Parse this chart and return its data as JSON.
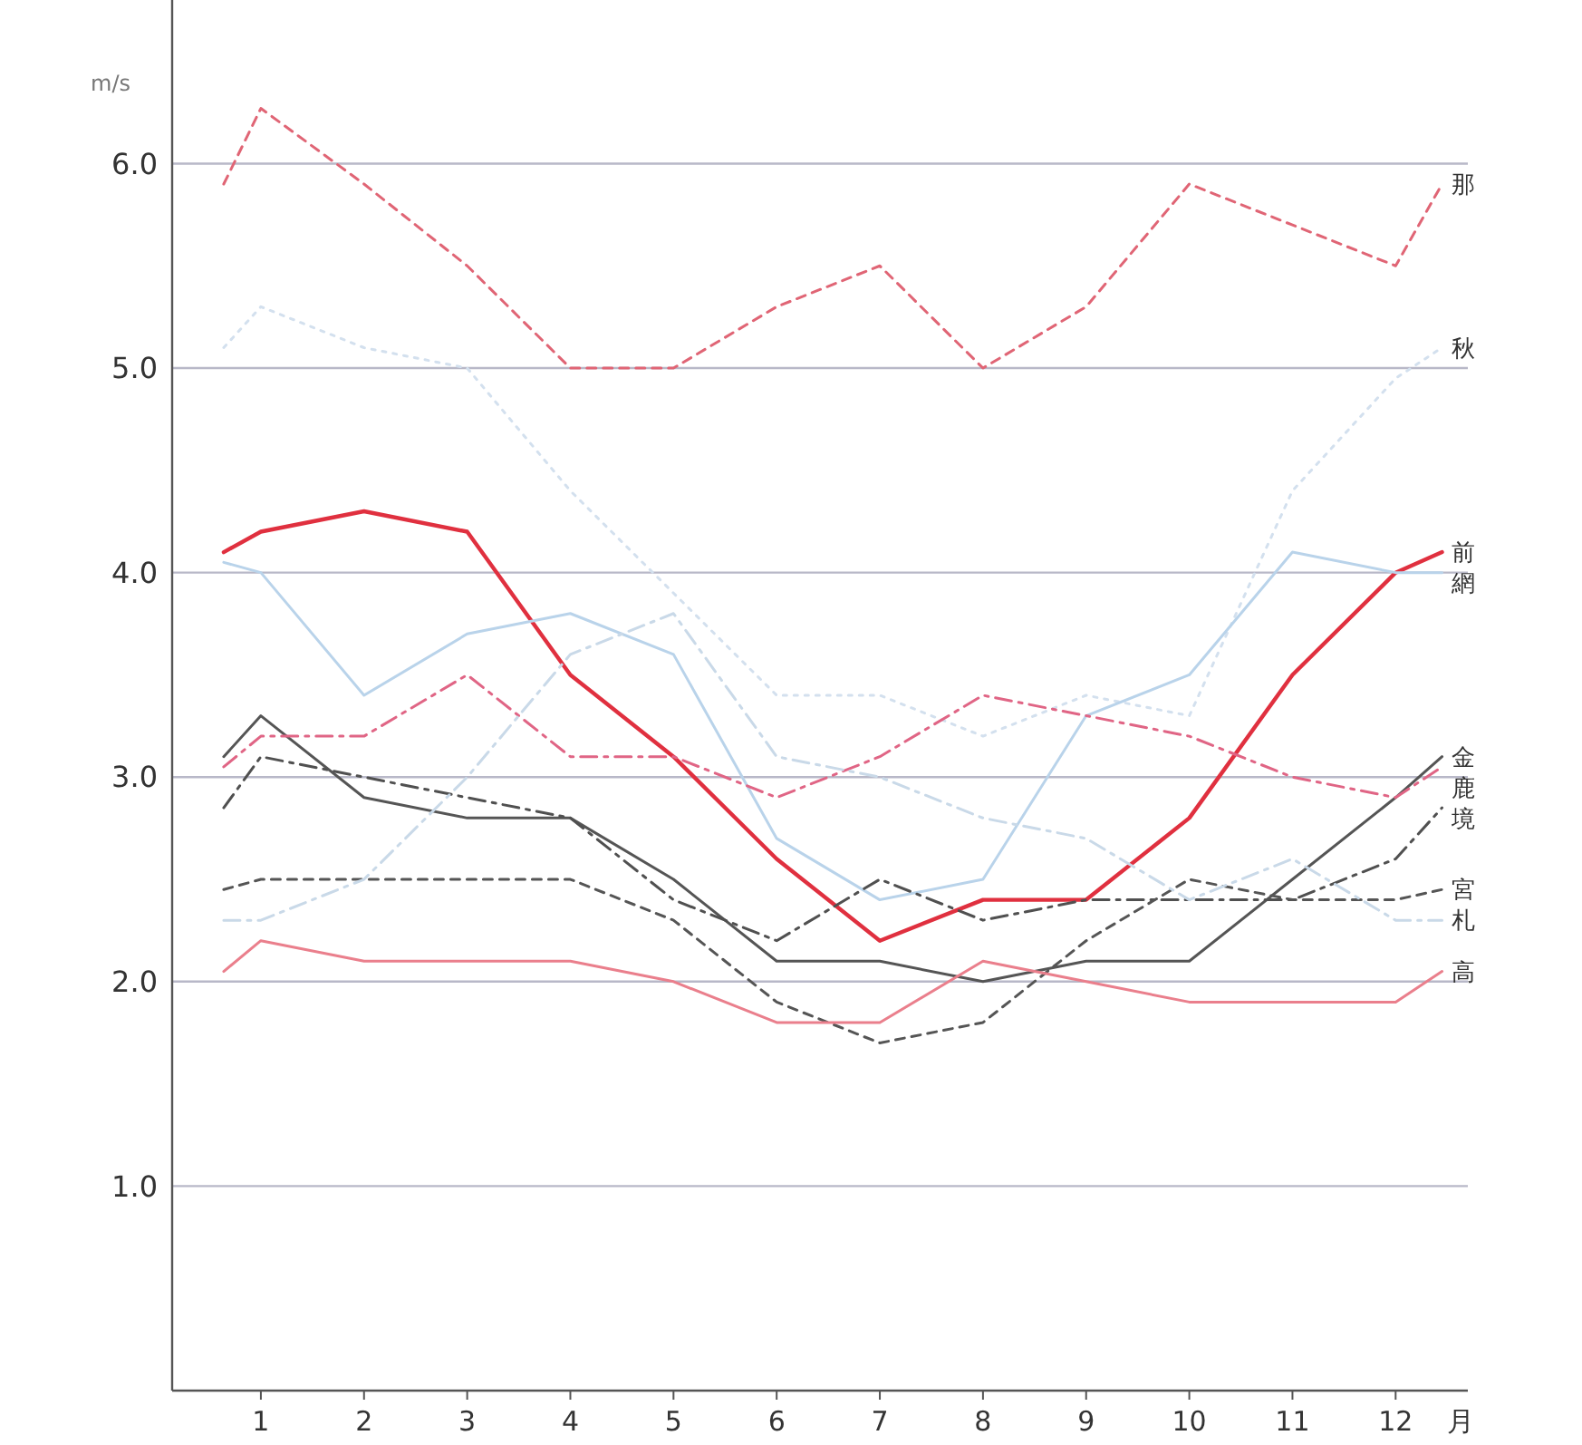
{
  "chart_data": {
    "type": "line",
    "xlabel": "月",
    "ylabel": "m/s",
    "x": [
      0.64,
      1,
      2,
      3,
      4,
      5,
      6,
      7,
      8,
      9,
      10,
      11,
      12,
      12.45
    ],
    "xlim": [
      0.14,
      12.7
    ],
    "ylim": [
      0,
      6.8
    ],
    "xticks": [
      1,
      2,
      3,
      4,
      5,
      6,
      7,
      8,
      9,
      10,
      11,
      12
    ],
    "yticks": [
      {
        "value": 1,
        "label": "1.0"
      },
      {
        "value": 2,
        "label": "2.0"
      },
      {
        "value": 3,
        "label": "3.0"
      },
      {
        "value": 4,
        "label": "4.0"
      },
      {
        "value": 5,
        "label": "5.0"
      },
      {
        "value": 6,
        "label": "6.0"
      }
    ],
    "grid": "y",
    "marker": "none",
    "series": [
      {
        "name": "那",
        "color": "#e06575",
        "line_style": "dashed",
        "values": [
          5.9,
          6.27,
          5.9,
          5.5,
          5.0,
          5.0,
          5.3,
          5.5,
          5.0,
          5.3,
          5.9,
          5.7,
          5.5,
          5.9
        ]
      },
      {
        "name": "秋",
        "color": "#d3e0ee",
        "line_style": "dotted",
        "values": [
          5.1,
          5.3,
          5.1,
          5.0,
          4.4,
          3.9,
          3.4,
          3.4,
          3.2,
          3.4,
          3.3,
          4.4,
          4.95,
          5.1
        ]
      },
      {
        "name": "前",
        "color": "#e0303f",
        "line_style": "solid",
        "values": [
          4.1,
          4.2,
          4.3,
          4.2,
          3.5,
          3.1,
          2.6,
          2.2,
          2.4,
          2.4,
          2.8,
          3.5,
          4.0,
          4.1
        ]
      },
      {
        "name": "網",
        "color": "#b9d3ea",
        "line_style": "solid",
        "values": [
          4.05,
          4.0,
          3.4,
          3.7,
          3.8,
          3.6,
          2.7,
          2.4,
          2.5,
          3.3,
          3.5,
          4.1,
          4.0,
          4.0
        ]
      },
      {
        "name": "金",
        "color": "#555555",
        "line_style": "solid",
        "values": [
          3.1,
          3.3,
          2.9,
          2.8,
          2.8,
          2.5,
          2.1,
          2.1,
          2.0,
          2.1,
          2.1,
          2.5,
          2.9,
          3.1
        ]
      },
      {
        "name": "鹿",
        "color": "#e06585",
        "line_style": "dashdot",
        "values": [
          3.05,
          3.2,
          3.2,
          3.5,
          3.1,
          3.1,
          2.9,
          3.1,
          3.4,
          3.3,
          3.2,
          3.0,
          2.9,
          3.05
        ]
      },
      {
        "name": "境",
        "color": "#505050",
        "line_style": "dashdot",
        "values": [
          2.85,
          3.1,
          3.0,
          2.9,
          2.8,
          2.4,
          2.2,
          2.5,
          2.3,
          2.4,
          2.4,
          2.4,
          2.6,
          2.85
        ]
      },
      {
        "name": "宮",
        "color": "#555555",
        "line_style": "dashed",
        "values": [
          2.45,
          2.5,
          2.5,
          2.5,
          2.5,
          2.3,
          1.9,
          1.7,
          1.8,
          2.2,
          2.5,
          2.4,
          2.4,
          2.45
        ]
      },
      {
        "name": "札",
        "color": "#c9d9e8",
        "line_style": "dashdot",
        "values": [
          2.3,
          2.3,
          2.5,
          3.0,
          3.6,
          3.8,
          3.1,
          3.0,
          2.8,
          2.7,
          2.4,
          2.6,
          2.3,
          2.3
        ]
      },
      {
        "name": "高",
        "color": "#ea7f8c",
        "line_style": "solid",
        "values": [
          2.05,
          2.2,
          2.1,
          2.1,
          2.1,
          2.0,
          1.8,
          1.8,
          2.1,
          2.0,
          1.9,
          1.9,
          1.9,
          2.05
        ]
      }
    ]
  }
}
